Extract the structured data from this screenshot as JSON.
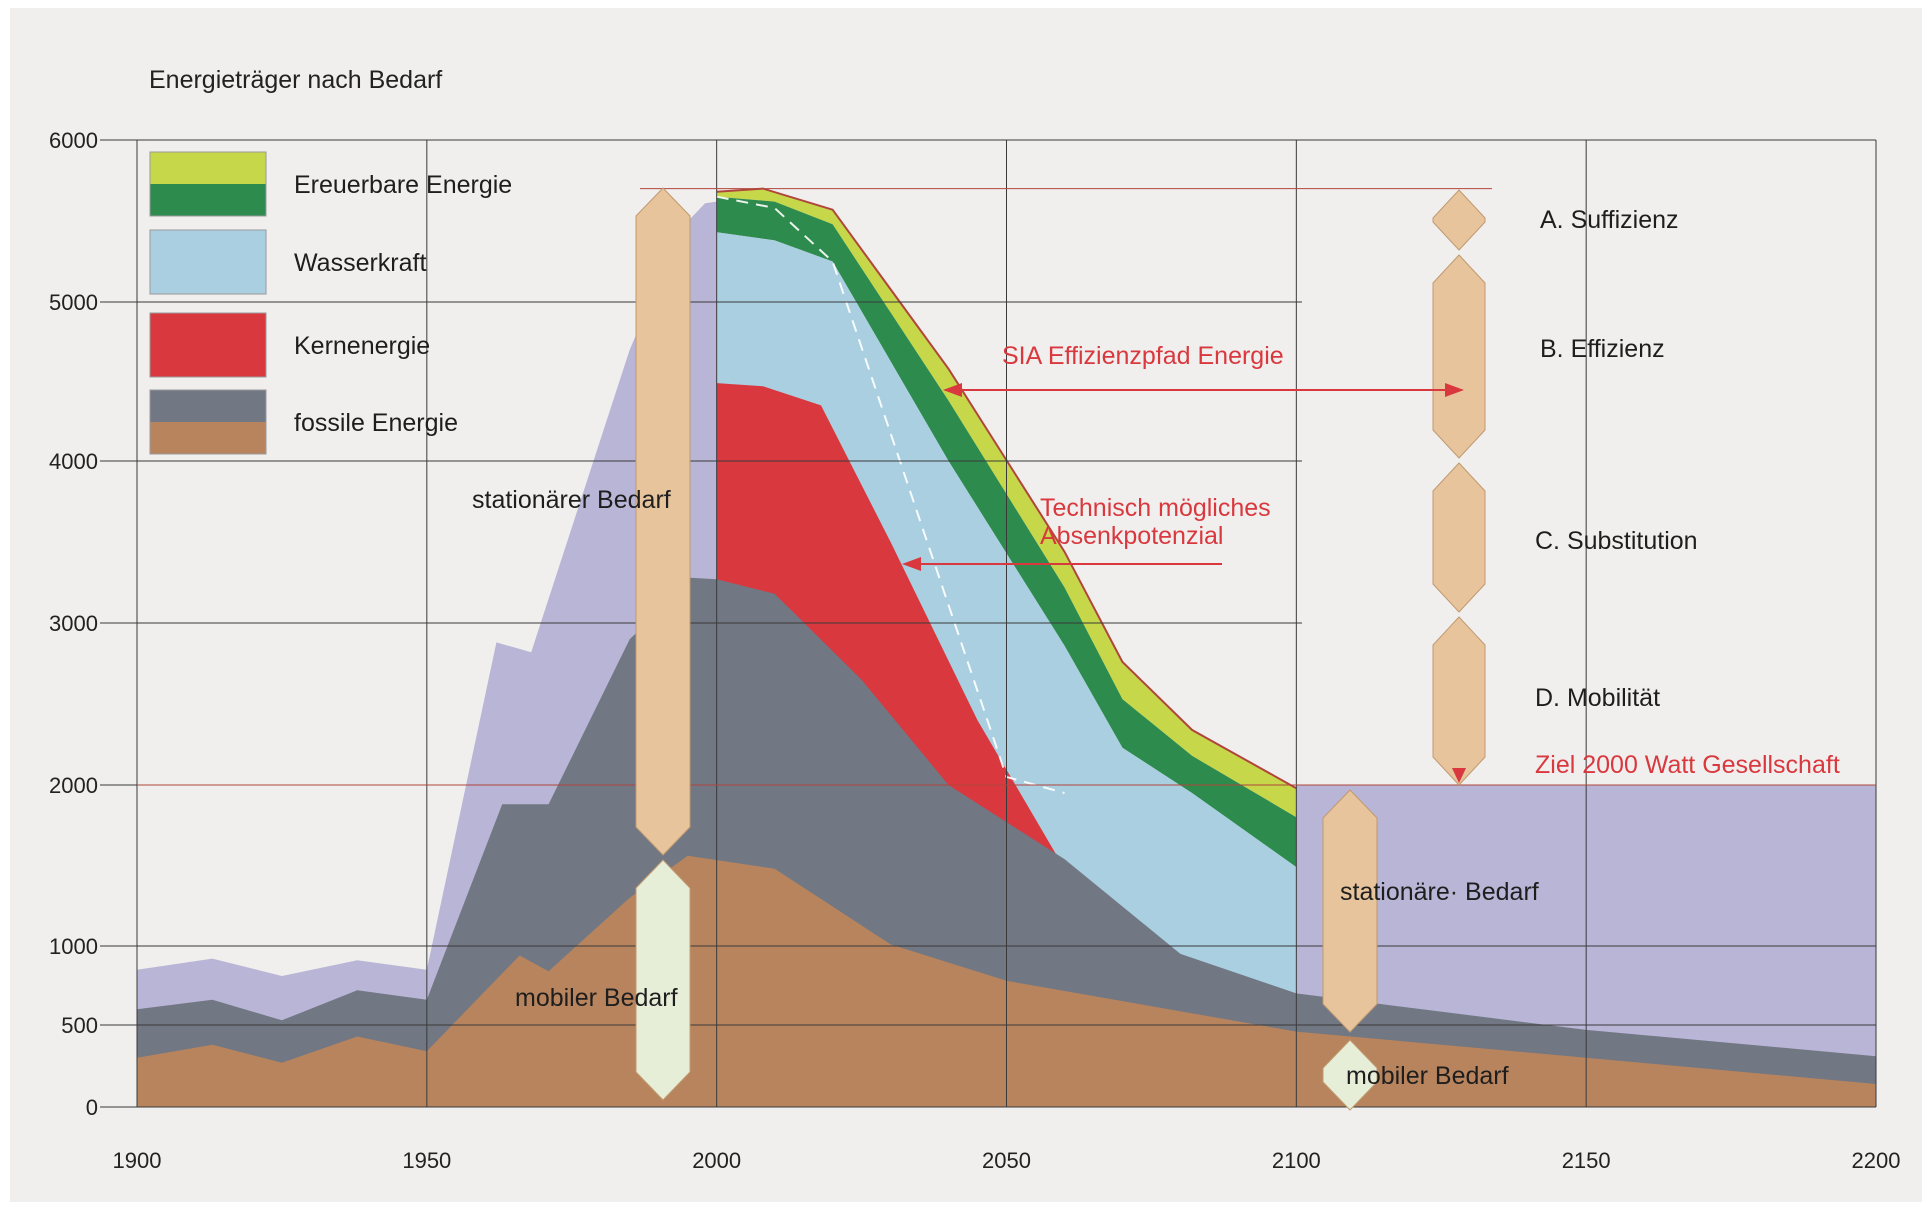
{
  "chart_data": {
    "type": "area",
    "title": "Energieträger nach Bedarf",
    "xlabel": "",
    "ylabel": "",
    "x_ticks": [
      1900,
      1950,
      2000,
      2050,
      2100,
      2150,
      2200
    ],
    "y_ticks": [
      0,
      500,
      1000,
      2000,
      3000,
      4000,
      5000,
      6000
    ],
    "xlim": [
      1900,
      2200
    ],
    "ylim": [
      0,
      6000
    ],
    "grid": true,
    "legend_position": "top-left",
    "legend": [
      {
        "label": "Ereuerbare Energie",
        "colors": [
          "#c6d84a",
          "#2e8b4e"
        ]
      },
      {
        "label": "Wasserkraft",
        "colors": [
          "#a9cfe0"
        ]
      },
      {
        "label": "Kernenergie",
        "colors": [
          "#d9383e"
        ]
      },
      {
        "label": "fossile Energie",
        "colors": [
          "#717783",
          "#b8845d"
        ]
      }
    ],
    "colors": {
      "lavender": "#b9b5d6",
      "fossil_grey": "#717783",
      "fossil_brown": "#b8845d",
      "nuclear": "#d9383e",
      "hydro": "#a9cfe0",
      "renew_dark": "#2e8b4e",
      "renew_light": "#c6d84a",
      "marker_tan": "#e8c49c",
      "marker_pale": "#e7eed8",
      "annotation_red": "#d9383e"
    },
    "series": [
      {
        "key": "mobiler",
        "points": [
          [
            1900,
            300
          ],
          [
            1913,
            380
          ],
          [
            1925,
            270
          ],
          [
            1938,
            430
          ],
          [
            1950,
            340
          ],
          [
            1966,
            940
          ],
          [
            1971,
            840
          ],
          [
            1985,
            1300
          ],
          [
            1995,
            1560
          ],
          [
            2010,
            1480
          ],
          [
            2030,
            1010
          ],
          [
            2050,
            780
          ],
          [
            2100,
            460
          ],
          [
            2150,
            300
          ],
          [
            2200,
            140
          ]
        ]
      },
      {
        "key": "fossil_stationaer",
        "points": [
          [
            1900,
            600
          ],
          [
            1913,
            660
          ],
          [
            1925,
            530
          ],
          [
            1938,
            720
          ],
          [
            1950,
            660
          ],
          [
            1963,
            1880
          ],
          [
            1971,
            1880
          ],
          [
            1985,
            2900
          ],
          [
            1990,
            3070
          ],
          [
            1995,
            3280
          ],
          [
            2000,
            3270
          ],
          [
            2010,
            3180
          ],
          [
            2025,
            2650
          ],
          [
            2040,
            2000
          ],
          [
            2060,
            1540
          ],
          [
            2080,
            950
          ],
          [
            2100,
            700
          ],
          [
            2150,
            470
          ],
          [
            2200,
            310
          ]
        ]
      },
      {
        "key": "nuclear",
        "points": [
          [
            2000,
            4490
          ],
          [
            2008,
            4470
          ],
          [
            2018,
            4350
          ],
          [
            2030,
            3500
          ],
          [
            2045,
            2400
          ],
          [
            2060,
            1480
          ],
          [
            2078,
            930
          ]
        ]
      },
      {
        "key": "hydro",
        "points": [
          [
            2000,
            5430
          ],
          [
            2010,
            5380
          ],
          [
            2020,
            5250
          ],
          [
            2040,
            4000
          ],
          [
            2060,
            2860
          ],
          [
            2070,
            2230
          ],
          [
            2082,
            1950
          ],
          [
            2100,
            1490
          ]
        ]
      },
      {
        "key": "renew_dark",
        "points": [
          [
            2000,
            5650
          ],
          [
            2010,
            5620
          ],
          [
            2020,
            5480
          ],
          [
            2040,
            4380
          ],
          [
            2060,
            3220
          ],
          [
            2070,
            2530
          ],
          [
            2082,
            2180
          ],
          [
            2100,
            1800
          ]
        ]
      },
      {
        "key": "renew_light",
        "points": [
          [
            2000,
            5680
          ],
          [
            2008,
            5700
          ],
          [
            2020,
            5570
          ],
          [
            2040,
            4580
          ],
          [
            2060,
            3440
          ],
          [
            2070,
            2760
          ],
          [
            2082,
            2340
          ],
          [
            2100,
            1980
          ]
        ]
      },
      {
        "key": "lavender_upper",
        "points": [
          [
            1900,
            850
          ],
          [
            1913,
            920
          ],
          [
            1925,
            810
          ],
          [
            1938,
            910
          ],
          [
            1950,
            850
          ],
          [
            1962,
            2880
          ],
          [
            1968,
            2820
          ],
          [
            1985,
            4700
          ],
          [
            1994,
            5460
          ],
          [
            1998,
            5610
          ],
          [
            2000,
            5620
          ]
        ]
      },
      {
        "key": "lavender_target",
        "points": [
          [
            2100,
            2000
          ],
          [
            2200,
            2000
          ]
        ]
      },
      {
        "key": "technisch_path",
        "points": [
          [
            2000,
            5650
          ],
          [
            2010,
            5580
          ],
          [
            2020,
            5250
          ],
          [
            2050,
            2050
          ],
          [
            2060,
            1950
          ]
        ]
      }
    ],
    "annotations": {
      "stationaerer_bedarf_left": "stationärer Bedarf",
      "mobiler_bedarf_left": "mobiler Bedarf",
      "stationaerer_bedarf_right": "stationäre· Bedarf",
      "mobiler_bedarf_right": "mobiler Bedarf",
      "sia_effizienzpfad": "SIA Effizienzpfad Energie",
      "technisch_line1": "Technisch mögliches",
      "technisch_line2": "Absenkpotenzial",
      "ziel": "Ziel 2000 Watt Gesellschaft",
      "a": "A. Suffizienz",
      "b": "B. Effizienz",
      "c": "C. Substitution",
      "d": "D. Mobilität"
    }
  }
}
